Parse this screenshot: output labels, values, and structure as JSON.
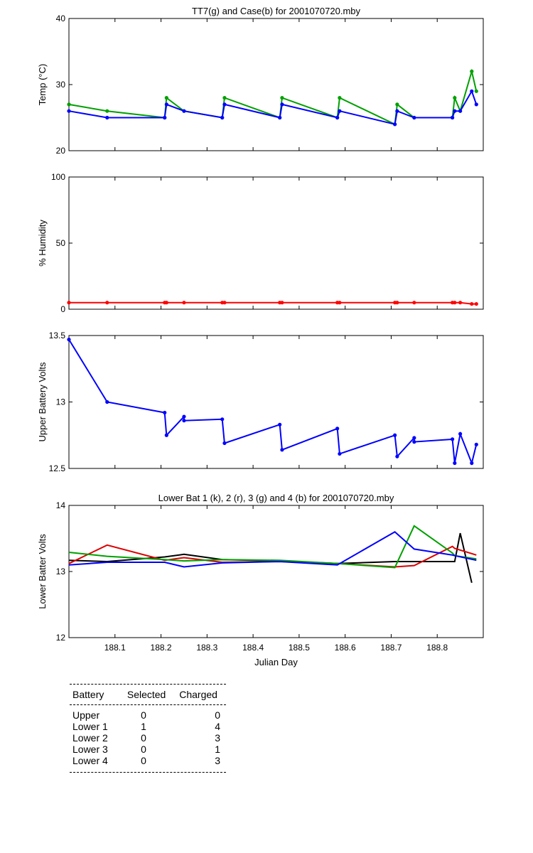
{
  "chart_data": [
    {
      "type": "line",
      "title": "TT7(g) and Case(b) for 2001070720.mby",
      "ylabel": "Temp  (°C)",
      "xlim": [
        188.0,
        188.9
      ],
      "ylim": [
        20,
        40
      ],
      "yticks": [
        "20",
        "30",
        "40"
      ],
      "series": [
        {
          "name": "TT7",
          "color": "#00a000",
          "marker": true,
          "x": [
            188.0,
            188.083,
            188.208,
            188.212,
            188.25,
            188.333,
            188.338,
            188.458,
            188.463,
            188.583,
            188.588,
            188.708,
            188.713,
            188.75,
            188.833,
            188.838,
            188.85,
            188.875,
            188.885
          ],
          "y": [
            27,
            26,
            25,
            28,
            26,
            25,
            28,
            25,
            28,
            25,
            28,
            24,
            27,
            25,
            25,
            28,
            26,
            32,
            29
          ]
        },
        {
          "name": "Case",
          "color": "#0000ff",
          "marker": true,
          "x": [
            188.0,
            188.083,
            188.208,
            188.212,
            188.25,
            188.333,
            188.338,
            188.458,
            188.463,
            188.583,
            188.588,
            188.708,
            188.713,
            188.75,
            188.833,
            188.838,
            188.85,
            188.875,
            188.885
          ],
          "y": [
            26,
            25,
            25,
            27,
            26,
            25,
            27,
            25,
            27,
            25,
            26,
            24,
            26,
            25,
            25,
            26,
            26,
            29,
            27
          ]
        }
      ]
    },
    {
      "type": "line",
      "title": "",
      "ylabel": "% Humidity",
      "xlim": [
        188.0,
        188.9
      ],
      "ylim": [
        0,
        100
      ],
      "yticks": [
        "0",
        "50",
        "100"
      ],
      "series": [
        {
          "name": "Humidity",
          "color": "#ff0000",
          "marker": true,
          "x": [
            188.0,
            188.083,
            188.208,
            188.212,
            188.25,
            188.333,
            188.338,
            188.458,
            188.463,
            188.583,
            188.588,
            188.708,
            188.713,
            188.75,
            188.833,
            188.838,
            188.85,
            188.875,
            188.885
          ],
          "y": [
            5,
            5,
            5,
            5,
            5,
            5,
            5,
            5,
            5,
            5,
            5,
            5,
            5,
            5,
            5,
            5,
            5,
            4,
            4
          ]
        }
      ]
    },
    {
      "type": "line",
      "title": "",
      "ylabel": "Upper Battery Volts",
      "xlim": [
        188.0,
        188.9
      ],
      "ylim": [
        12.5,
        13.5
      ],
      "yticks": [
        "12.5",
        "13",
        "13.5"
      ],
      "series": [
        {
          "name": "Upper",
          "color": "#0000ff",
          "marker": true,
          "x": [
            188.0,
            188.083,
            188.208,
            188.212,
            188.25,
            188.25,
            188.333,
            188.338,
            188.458,
            188.463,
            188.583,
            188.588,
            188.708,
            188.713,
            188.75,
            188.75,
            188.833,
            188.838,
            188.85,
            188.875,
            188.885
          ],
          "y": [
            13.47,
            13.0,
            12.92,
            12.75,
            12.89,
            12.86,
            12.87,
            12.69,
            12.83,
            12.64,
            12.8,
            12.61,
            12.75,
            12.59,
            12.73,
            12.7,
            12.72,
            12.54,
            12.76,
            12.54,
            12.68
          ]
        }
      ]
    },
    {
      "type": "line",
      "title": "Lower Bat 1 (k), 2 (r), 3 (g) and 4 (b) for 2001070720.mby",
      "xlabel": "Julian Day",
      "ylabel": "Lower Batter Volts",
      "xlim": [
        188.0,
        188.9
      ],
      "ylim": [
        12,
        14
      ],
      "yticks": [
        "12",
        "13",
        "14"
      ],
      "xticks": [
        "188.1",
        "188.2",
        "188.3",
        "188.4",
        "188.5",
        "188.6",
        "188.7",
        "188.8"
      ],
      "series": [
        {
          "name": "Lower 1",
          "color": "#000000",
          "x": [
            188.0,
            188.083,
            188.208,
            188.25,
            188.333,
            188.458,
            188.583,
            188.708,
            188.75,
            188.833,
            188.838,
            188.85,
            188.875
          ],
          "y": [
            13.17,
            13.15,
            13.22,
            13.26,
            13.18,
            13.16,
            13.12,
            13.15,
            13.15,
            13.15,
            13.15,
            13.58,
            12.83
          ]
        },
        {
          "name": "Lower 2",
          "color": "#dd0000",
          "x": [
            188.0,
            188.083,
            188.208,
            188.25,
            188.333,
            188.458,
            188.583,
            188.708,
            188.75,
            188.833,
            188.838,
            188.885
          ],
          "y": [
            13.12,
            13.4,
            13.17,
            13.21,
            13.14,
            13.15,
            13.12,
            13.07,
            13.09,
            13.38,
            13.35,
            13.25
          ]
        },
        {
          "name": "Lower 3",
          "color": "#00a000",
          "x": [
            188.0,
            188.083,
            188.208,
            188.25,
            188.333,
            188.458,
            188.583,
            188.708,
            188.75,
            188.833,
            188.838,
            188.885
          ],
          "y": [
            13.29,
            13.23,
            13.18,
            13.16,
            13.18,
            13.17,
            13.12,
            13.06,
            13.69,
            13.28,
            13.24,
            13.19
          ]
        },
        {
          "name": "Lower 4",
          "color": "#0000ff",
          "x": [
            188.0,
            188.083,
            188.208,
            188.25,
            188.333,
            188.458,
            188.583,
            188.708,
            188.75,
            188.833,
            188.838,
            188.885
          ],
          "y": [
            13.1,
            13.14,
            13.14,
            13.07,
            13.13,
            13.15,
            13.1,
            13.6,
            13.34,
            13.25,
            13.24,
            13.17
          ]
        }
      ]
    }
  ],
  "battery_table": {
    "headers": [
      "Battery",
      "Selected",
      "Charged"
    ],
    "rows": [
      [
        "Upper",
        "0",
        "0"
      ],
      [
        "Lower 1",
        "1",
        "4"
      ],
      [
        "Lower 2",
        "0",
        "3"
      ],
      [
        "Lower 3",
        "0",
        "1"
      ],
      [
        "Lower 4",
        "0",
        "3"
      ]
    ]
  }
}
